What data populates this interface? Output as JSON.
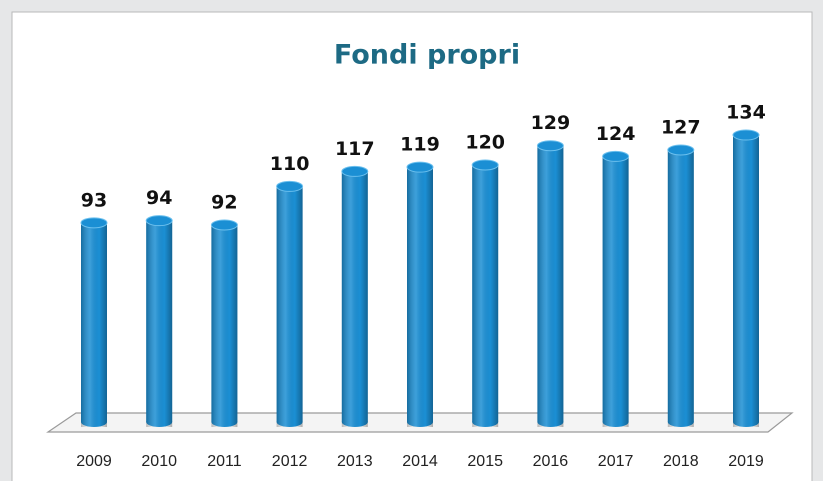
{
  "chart_data": {
    "type": "bar",
    "title": "Fondi propri",
    "categories": [
      "2009",
      "2010",
      "2011",
      "2012",
      "2013",
      "2014",
      "2015",
      "2016",
      "2017",
      "2018",
      "2019"
    ],
    "values": [
      93,
      94,
      92,
      110,
      117,
      119,
      120,
      129,
      124,
      127,
      134
    ],
    "color": "#1b8fd4"
  }
}
